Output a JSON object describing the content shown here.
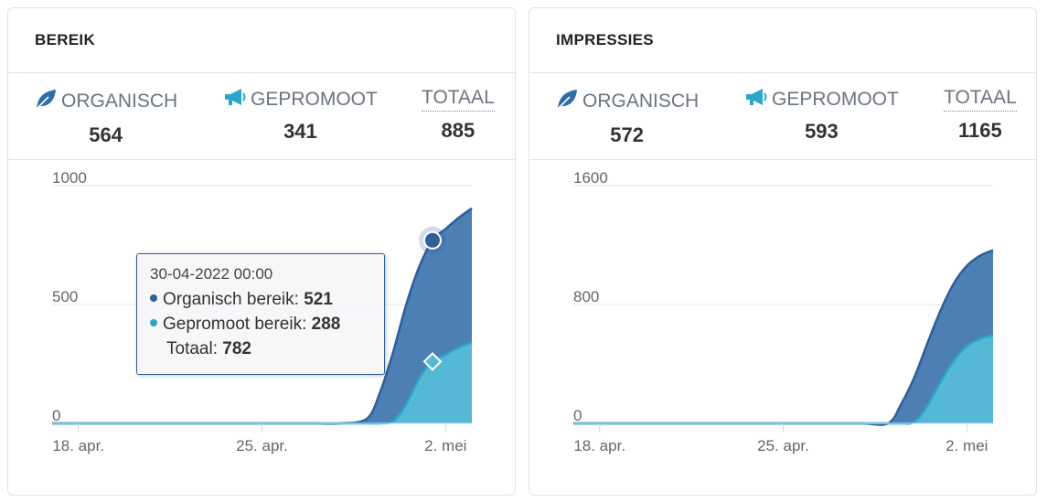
{
  "colors": {
    "organic": "#2d5f98",
    "organic_fill": "#4d7fb4",
    "promoted": "#2aa6c9",
    "promoted_fill": "#55b8d4"
  },
  "cards": [
    {
      "title": "BEREIK",
      "metrics": [
        {
          "label": "ORGANISCH",
          "value": "564",
          "icon": "leaf-icon"
        },
        {
          "label": "GEPROMOOT",
          "value": "341",
          "icon": "megaphone-icon"
        },
        {
          "label": "TOTAAL",
          "value": "885"
        }
      ]
    },
    {
      "title": "IMPRESSIES",
      "metrics": [
        {
          "label": "ORGANISCH",
          "value": "572",
          "icon": "leaf-icon"
        },
        {
          "label": "GEPROMOOT",
          "value": "593",
          "icon": "megaphone-icon"
        },
        {
          "label": "TOTAAL",
          "value": "1165"
        }
      ]
    }
  ],
  "tooltip": {
    "date": "30-04-2022 00:00",
    "organic_label": "Organisch bereik: ",
    "organic_value": "521",
    "promoted_label": "Gepromoot bereik: ",
    "promoted_value": "288",
    "total_label": "Totaal: ",
    "total_value": "782"
  },
  "chart_data": [
    {
      "type": "area",
      "stacked": true,
      "x": [
        17,
        18,
        19,
        20,
        21,
        22,
        23,
        24,
        25,
        26,
        27,
        28,
        29,
        29.5,
        30,
        30.5,
        31,
        31.5,
        32,
        32.5,
        33
      ],
      "x_ticks": [
        {
          "x": 18,
          "label": "18. apr."
        },
        {
          "x": 25,
          "label": "25. apr."
        },
        {
          "x": 32,
          "label": "2. mei"
        }
      ],
      "series": [
        {
          "name": "Organisch bereik",
          "values": [
            0,
            0,
            0,
            0,
            0,
            0,
            0,
            0,
            0,
            0,
            0,
            0,
            20,
            130,
            290,
            420,
            470,
            510,
            530,
            545,
            564
          ]
        },
        {
          "name": "Gepromoot bereik",
          "values": [
            0,
            0,
            0,
            0,
            0,
            0,
            0,
            0,
            0,
            0,
            0,
            0,
            0,
            0,
            10,
            80,
            190,
            260,
            288,
            320,
            341
          ]
        }
      ],
      "ylim": [
        0,
        1000
      ],
      "y_ticks": [
        0,
        500,
        1000
      ],
      "highlight_x": 31.5
    },
    {
      "type": "area",
      "stacked": true,
      "x": [
        17,
        18,
        19,
        20,
        21,
        22,
        23,
        24,
        25,
        26,
        27,
        28,
        29,
        29.5,
        30,
        30.5,
        31,
        31.5,
        32,
        32.5,
        33
      ],
      "x_ticks": [
        {
          "x": 18,
          "label": "18. apr."
        },
        {
          "x": 25,
          "label": "25. apr."
        },
        {
          "x": 32,
          "label": "2. mei"
        }
      ],
      "series": [
        {
          "name": "Organisch",
          "values": [
            0,
            0,
            0,
            0,
            0,
            0,
            0,
            0,
            0,
            0,
            0,
            0,
            0,
            130,
            300,
            420,
            480,
            520,
            540,
            558,
            572
          ]
        },
        {
          "name": "Gepromoot",
          "values": [
            0,
            0,
            0,
            0,
            0,
            0,
            0,
            0,
            0,
            0,
            0,
            0,
            0,
            0,
            10,
            120,
            280,
            420,
            520,
            570,
            593
          ]
        }
      ],
      "ylim": [
        0,
        1600
      ],
      "y_ticks": [
        0,
        800,
        1600
      ]
    }
  ]
}
